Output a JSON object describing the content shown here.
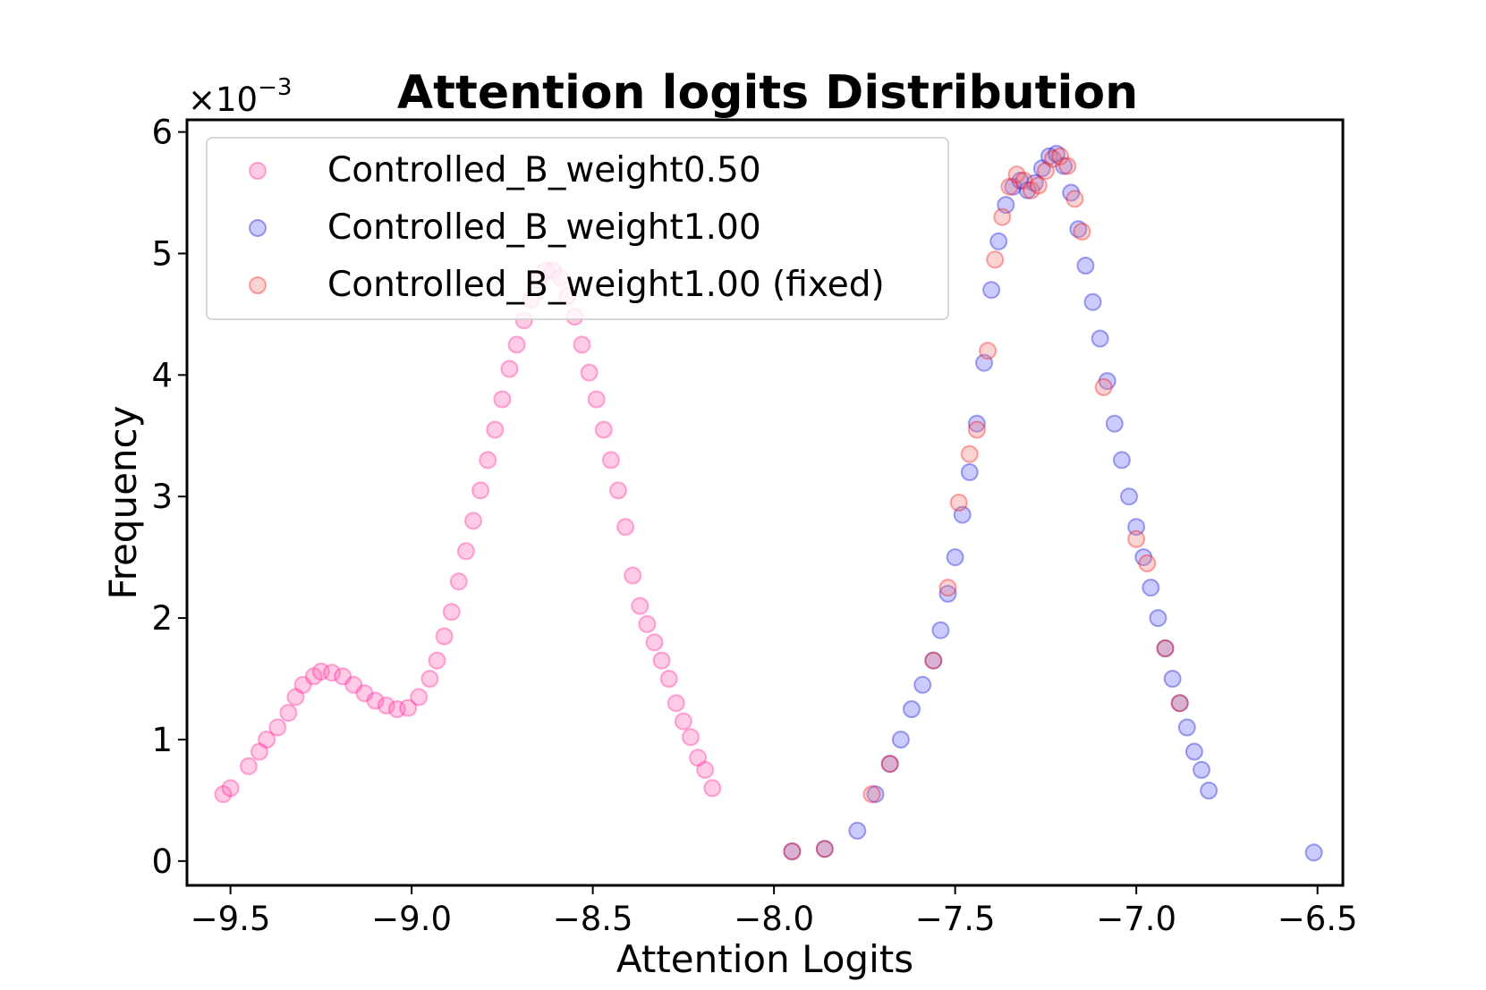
{
  "chart_data": {
    "type": "scatter",
    "title": "Attention logits Distribution",
    "xlabel": "Attention Logits",
    "ylabel": "Frequency",
    "y_multiplier": "×10",
    "y_multiplier_exp": "−3",
    "xlim": [
      -9.62,
      -6.43
    ],
    "ylim": [
      -0.2,
      6.1
    ],
    "xticks": [
      -9.5,
      -9.0,
      -8.5,
      -8.0,
      -7.5,
      -7.0,
      -6.5
    ],
    "xtick_labels": [
      "−9.5",
      "−9.0",
      "−8.5",
      "−8.0",
      "−7.5",
      "−7.0",
      "−6.5"
    ],
    "yticks": [
      0,
      1,
      2,
      3,
      4,
      5,
      6
    ],
    "ytick_labels": [
      "0",
      "1",
      "2",
      "3",
      "4",
      "5",
      "6"
    ],
    "grid": false,
    "legend_position": "top-left",
    "series": [
      {
        "name": "Controlled_B_weight0.50",
        "color": "#ff69b4",
        "edge": "#ff1493",
        "x": [
          -9.52,
          -9.5,
          -9.45,
          -9.42,
          -9.4,
          -9.37,
          -9.34,
          -9.32,
          -9.3,
          -9.27,
          -9.25,
          -9.22,
          -9.19,
          -9.16,
          -9.13,
          -9.1,
          -9.07,
          -9.04,
          -9.01,
          -8.98,
          -8.95,
          -8.93,
          -8.91,
          -8.89,
          -8.87,
          -8.85,
          -8.83,
          -8.81,
          -8.79,
          -8.77,
          -8.75,
          -8.73,
          -8.71,
          -8.69,
          -8.67,
          -8.65,
          -8.63,
          -8.61,
          -8.59,
          -8.57,
          -8.55,
          -8.53,
          -8.51,
          -8.49,
          -8.47,
          -8.45,
          -8.43,
          -8.41,
          -8.39,
          -8.37,
          -8.35,
          -8.33,
          -8.31,
          -8.29,
          -8.27,
          -8.25,
          -8.23,
          -8.21,
          -8.19,
          -8.17
        ],
        "y": [
          0.55,
          0.6,
          0.78,
          0.9,
          1.0,
          1.1,
          1.22,
          1.35,
          1.45,
          1.52,
          1.56,
          1.55,
          1.52,
          1.45,
          1.38,
          1.32,
          1.28,
          1.25,
          1.26,
          1.35,
          1.5,
          1.65,
          1.85,
          2.05,
          2.3,
          2.55,
          2.8,
          3.05,
          3.3,
          3.55,
          3.8,
          4.05,
          4.25,
          4.45,
          4.62,
          4.78,
          4.86,
          4.86,
          4.8,
          4.65,
          4.48,
          4.25,
          4.02,
          3.8,
          3.55,
          3.3,
          3.05,
          2.75,
          2.35,
          2.1,
          1.95,
          1.8,
          1.65,
          1.5,
          1.3,
          1.15,
          1.02,
          0.85,
          0.75,
          0.6
        ]
      },
      {
        "name": "Controlled_B_weight1.00",
        "color": "#6b6bff",
        "edge": "#0000cd",
        "x": [
          -7.95,
          -7.86,
          -7.77,
          -7.72,
          -7.68,
          -7.65,
          -7.62,
          -7.59,
          -7.56,
          -7.54,
          -7.52,
          -7.5,
          -7.48,
          -7.46,
          -7.44,
          -7.42,
          -7.4,
          -7.38,
          -7.36,
          -7.34,
          -7.32,
          -7.3,
          -7.28,
          -7.26,
          -7.24,
          -7.22,
          -7.2,
          -7.18,
          -7.16,
          -7.14,
          -7.12,
          -7.1,
          -7.08,
          -7.06,
          -7.04,
          -7.02,
          -7.0,
          -6.98,
          -6.96,
          -6.94,
          -6.92,
          -6.9,
          -6.88,
          -6.86,
          -6.84,
          -6.82,
          -6.8,
          -6.51
        ],
        "y": [
          0.08,
          0.1,
          0.25,
          0.55,
          0.8,
          1.0,
          1.25,
          1.45,
          1.65,
          1.9,
          2.2,
          2.5,
          2.85,
          3.2,
          3.6,
          4.1,
          4.7,
          5.1,
          5.4,
          5.55,
          5.6,
          5.52,
          5.58,
          5.7,
          5.8,
          5.82,
          5.72,
          5.5,
          5.2,
          4.9,
          4.6,
          4.3,
          3.95,
          3.6,
          3.3,
          3.0,
          2.75,
          2.5,
          2.25,
          2.0,
          1.75,
          1.5,
          1.3,
          1.1,
          0.9,
          0.75,
          0.58,
          0.07
        ]
      },
      {
        "name": "Controlled_B_weight1.00 (fixed)",
        "color": "#f08080",
        "edge": "#ff0000",
        "x": [
          -7.95,
          -7.86,
          -7.73,
          -7.68,
          -7.56,
          -7.52,
          -7.49,
          -7.46,
          -7.44,
          -7.41,
          -7.39,
          -7.37,
          -7.35,
          -7.33,
          -7.31,
          -7.29,
          -7.27,
          -7.25,
          -7.23,
          -7.21,
          -7.19,
          -7.17,
          -7.15,
          -7.09,
          -7.0,
          -6.97,
          -6.92,
          -6.88
        ],
        "y": [
          0.08,
          0.1,
          0.55,
          0.8,
          1.65,
          2.25,
          2.95,
          3.35,
          3.55,
          4.2,
          4.95,
          5.3,
          5.55,
          5.65,
          5.6,
          5.52,
          5.56,
          5.68,
          5.78,
          5.8,
          5.72,
          5.45,
          5.18,
          3.9,
          2.65,
          2.45,
          1.75,
          1.3
        ]
      }
    ]
  }
}
